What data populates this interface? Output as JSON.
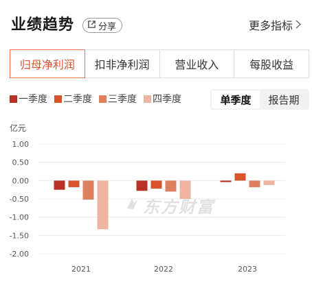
{
  "header": {
    "title": "业绩趋势",
    "share_label": "分享",
    "more_label": "更多指标"
  },
  "tabs": [
    {
      "label": "归母净利润",
      "active": true
    },
    {
      "label": "扣非净利润",
      "active": false
    },
    {
      "label": "营业收入",
      "active": false
    },
    {
      "label": "每股收益",
      "active": false
    }
  ],
  "toggle": {
    "options": [
      "单季度",
      "报告期"
    ],
    "selected": "单季度"
  },
  "watermark": "东方财富",
  "colors": {
    "q1": "#b83227",
    "q2": "#d9532c",
    "q3": "#de8163",
    "q4": "#eeb3a1",
    "accent": "#d9532c"
  },
  "chart_data": {
    "type": "bar",
    "unit_label": "亿元",
    "categories": [
      "2021",
      "2022",
      "2023"
    ],
    "series": [
      {
        "name": "一季度",
        "values": [
          -0.25,
          -0.28,
          -0.04
        ]
      },
      {
        "name": "二季度",
        "values": [
          -0.18,
          -0.22,
          0.2
        ]
      },
      {
        "name": "三季度",
        "values": [
          -0.52,
          -0.3,
          -0.18
        ]
      },
      {
        "name": "四季度",
        "values": [
          -1.33,
          -0.5,
          -0.12
        ]
      }
    ],
    "y_ticks": [
      "1.00",
      "0.50",
      "0.00",
      "-0.50",
      "-1.00",
      "-1.50",
      "-2.00"
    ],
    "ylim": [
      -2.0,
      1.0
    ],
    "grid": true,
    "legend": "top-left"
  }
}
